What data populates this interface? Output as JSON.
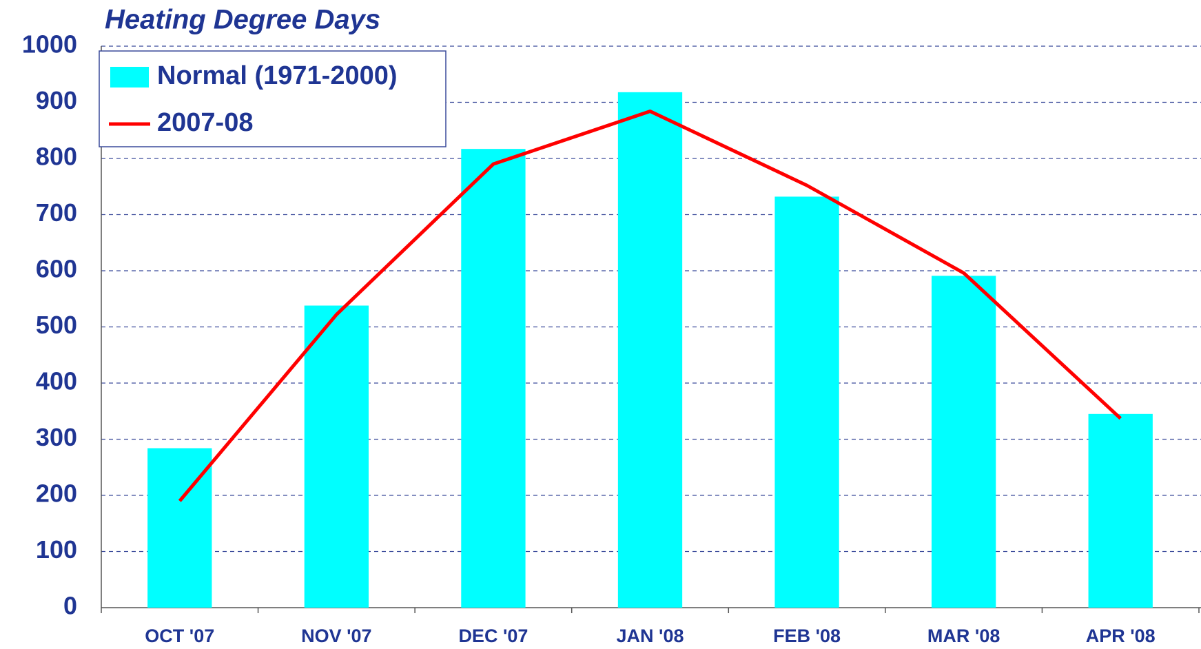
{
  "chart_data": {
    "type": "bar_line",
    "title": "Heating Degree Days",
    "categories": [
      "OCT '07",
      "NOV '07",
      "DEC '07",
      "JAN '08",
      "FEB '08",
      "MAR '08",
      "APR '08"
    ],
    "series": [
      {
        "name": "Normal (1971-2000)",
        "type": "bar",
        "color": "#00ffff",
        "values": [
          284,
          538,
          817,
          918,
          732,
          591,
          345
        ]
      },
      {
        "name": "2007-08",
        "type": "line",
        "color": "#ff0000",
        "values": [
          190,
          522,
          790,
          884,
          752,
          596,
          337
        ]
      }
    ],
    "ylim": [
      0,
      1000
    ],
    "yticks": [
      0,
      100,
      200,
      300,
      400,
      500,
      600,
      700,
      800,
      900,
      1000
    ],
    "grid": true,
    "legend": "top-left"
  }
}
